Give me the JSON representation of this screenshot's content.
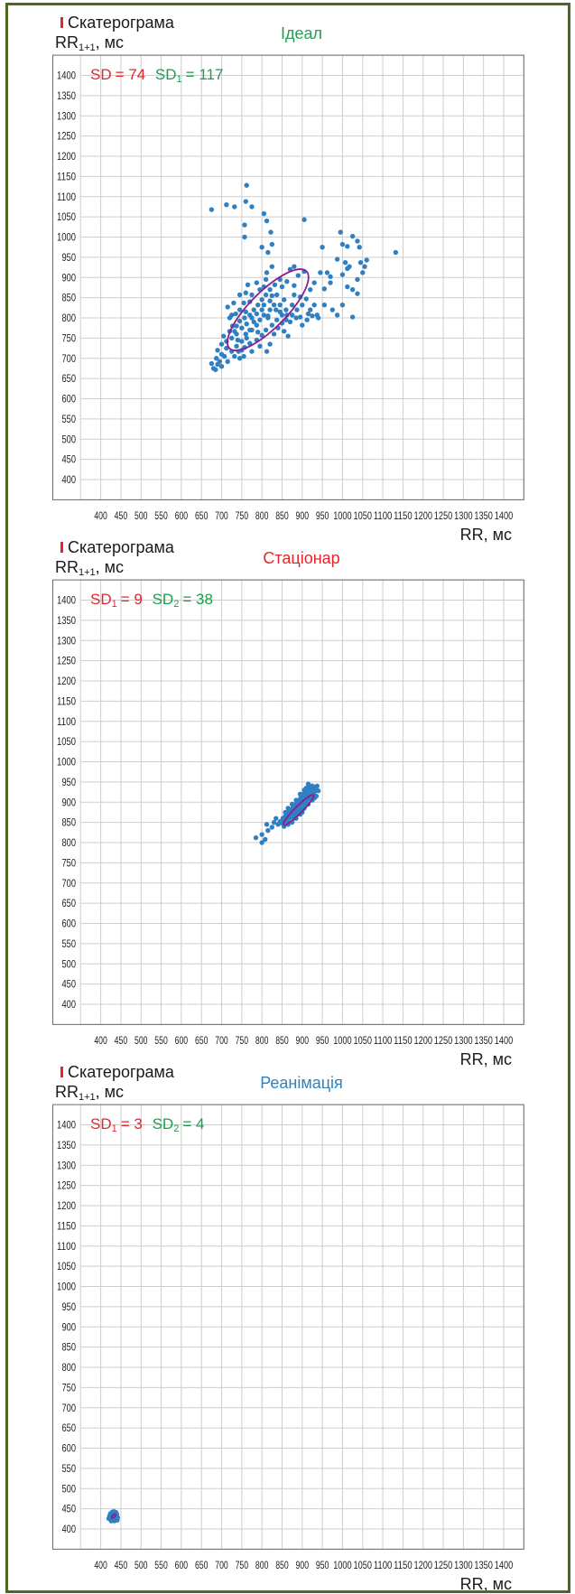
{
  "chart_data": [
    {
      "type": "scatter",
      "header": "Скатерограма",
      "title": "Ідеал",
      "title_color": "#22a14f",
      "ylabel": {
        "main": "RR",
        "sub": "1+1",
        "unit": ", мс"
      },
      "xlabel": "RR, мс",
      "xlim": [
        350,
        1450
      ],
      "ylim": [
        350,
        1450
      ],
      "grid": true,
      "xticks": [
        400,
        450,
        500,
        550,
        600,
        650,
        700,
        750,
        800,
        850,
        900,
        950,
        1000,
        1050,
        1100,
        1150,
        1200,
        1250,
        1300,
        1350,
        1400
      ],
      "yticks": [
        400,
        450,
        500,
        550,
        600,
        650,
        700,
        750,
        800,
        850,
        900,
        950,
        1000,
        1050,
        1100,
        1150,
        1200,
        1250,
        1300,
        1350,
        1400
      ],
      "annotations": [
        {
          "label": "SD",
          "value": "= 74",
          "color": "#e3262c"
        },
        {
          "label": "SD",
          "sub": "1",
          "value": "= 117",
          "color": "#1f9c4c"
        }
      ],
      "point_color": "#2f80c3",
      "points": [
        [
          675,
          1068
        ],
        [
          712,
          1080
        ],
        [
          732,
          1075
        ],
        [
          762,
          1128
        ],
        [
          760,
          1088
        ],
        [
          775,
          1075
        ],
        [
          805,
          1058
        ],
        [
          812,
          1040
        ],
        [
          757,
          1030
        ],
        [
          757,
          1000
        ],
        [
          822,
          1012
        ],
        [
          825,
          982
        ],
        [
          800,
          975
        ],
        [
          815,
          962
        ],
        [
          905,
          1043
        ],
        [
          995,
          1012
        ],
        [
          1025,
          1002
        ],
        [
          1037,
          990
        ],
        [
          1012,
          977
        ],
        [
          1000,
          982
        ],
        [
          950,
          975
        ],
        [
          987,
          945
        ],
        [
          1007,
          937
        ],
        [
          1017,
          927
        ],
        [
          1000,
          907
        ],
        [
          1012,
          922
        ],
        [
          1042,
          975
        ],
        [
          1045,
          937
        ],
        [
          1055,
          927
        ],
        [
          1050,
          912
        ],
        [
          1060,
          943
        ],
        [
          1132,
          962
        ],
        [
          1037,
          895
        ],
        [
          1025,
          870
        ],
        [
          1037,
          860
        ],
        [
          1012,
          877
        ],
        [
          1000,
          832
        ],
        [
          987,
          807
        ],
        [
          1025,
          802
        ],
        [
          962,
          912
        ],
        [
          970,
          902
        ],
        [
          970,
          887
        ],
        [
          945,
          912
        ],
        [
          955,
          872
        ],
        [
          930,
          832
        ],
        [
          920,
          820
        ],
        [
          937,
          807
        ],
        [
          912,
          795
        ],
        [
          940,
          800
        ],
        [
          900,
          782
        ],
        [
          895,
          802
        ],
        [
          875,
          807
        ],
        [
          862,
          807
        ],
        [
          850,
          787
        ],
        [
          880,
          857
        ],
        [
          895,
          852
        ],
        [
          855,
          845
        ],
        [
          845,
          832
        ],
        [
          830,
          832
        ],
        [
          820,
          820
        ],
        [
          805,
          807
        ],
        [
          795,
          795
        ],
        [
          787,
          782
        ],
        [
          775,
          770
        ],
        [
          762,
          750
        ],
        [
          750,
          742
        ],
        [
          737,
          730
        ],
        [
          725,
          717
        ],
        [
          712,
          725
        ],
        [
          700,
          710
        ],
        [
          687,
          700
        ],
        [
          675,
          687
        ],
        [
          680,
          675
        ],
        [
          695,
          692
        ],
        [
          712,
          742
        ],
        [
          720,
          767
        ],
        [
          737,
          780
        ],
        [
          750,
          775
        ],
        [
          757,
          800
        ],
        [
          770,
          807
        ],
        [
          780,
          820
        ],
        [
          790,
          832
        ],
        [
          800,
          845
        ],
        [
          810,
          857
        ],
        [
          820,
          870
        ],
        [
          832,
          882
        ],
        [
          845,
          895
        ],
        [
          870,
          920
        ],
        [
          880,
          927
        ],
        [
          825,
          927
        ],
        [
          810,
          895
        ],
        [
          787,
          887
        ],
        [
          765,
          882
        ],
        [
          745,
          857
        ],
        [
          730,
          837
        ],
        [
          715,
          827
        ],
        [
          725,
          807
        ],
        [
          745,
          820
        ],
        [
          755,
          837
        ],
        [
          775,
          857
        ],
        [
          795,
          870
        ],
        [
          805,
          877
        ],
        [
          837,
          857
        ],
        [
          850,
          877
        ],
        [
          862,
          890
        ],
        [
          755,
          705
        ],
        [
          775,
          717
        ],
        [
          795,
          730
        ],
        [
          812,
          717
        ],
        [
          820,
          735
        ],
        [
          830,
          760
        ],
        [
          840,
          775
        ],
        [
          855,
          767
        ],
        [
          865,
          755
        ],
        [
          837,
          795
        ],
        [
          825,
          782
        ],
        [
          810,
          770
        ],
        [
          800,
          757
        ],
        [
          787,
          745
        ],
        [
          770,
          737
        ],
        [
          757,
          727
        ],
        [
          742,
          717
        ],
        [
          732,
          705
        ],
        [
          715,
          692
        ],
        [
          700,
          680
        ],
        [
          685,
          672
        ],
        [
          690,
          685
        ],
        [
          707,
          705
        ],
        [
          725,
          750
        ],
        [
          732,
          767
        ],
        [
          745,
          792
        ],
        [
          762,
          785
        ],
        [
          775,
          800
        ],
        [
          787,
          810
        ],
        [
          805,
          832
        ],
        [
          820,
          842
        ],
        [
          835,
          820
        ],
        [
          850,
          807
        ],
        [
          875,
          832
        ],
        [
          887,
          820
        ],
        [
          900,
          832
        ],
        [
          910,
          847
        ],
        [
          920,
          870
        ],
        [
          930,
          887
        ],
        [
          955,
          832
        ],
        [
          975,
          820
        ],
        [
          812,
          912
        ],
        [
          727,
          780
        ],
        [
          737,
          760
        ],
        [
          760,
          760
        ],
        [
          790,
          765
        ],
        [
          815,
          800
        ],
        [
          860,
          820
        ],
        [
          845,
          815
        ],
        [
          760,
          815
        ],
        [
          700,
          735
        ],
        [
          690,
          720
        ],
        [
          705,
          755
        ],
        [
          720,
          800
        ],
        [
          735,
          810
        ],
        [
          770,
          840
        ],
        [
          760,
          862
        ],
        [
          825,
          855
        ],
        [
          880,
          880
        ],
        [
          890,
          905
        ],
        [
          905,
          915
        ],
        [
          815,
          805
        ],
        [
          800,
          820
        ],
        [
          780,
          790
        ],
        [
          770,
          770
        ],
        [
          740,
          745
        ],
        [
          750,
          720
        ],
        [
          745,
          700
        ],
        [
          870,
          790
        ],
        [
          860,
          795
        ],
        [
          885,
          800
        ],
        [
          915,
          810
        ],
        [
          925,
          805
        ]
      ],
      "ellipse": {
        "cx": 815,
        "cy": 820,
        "a": 135,
        "b": 45,
        "angle": 45,
        "color": "#8b1d8d"
      }
    },
    {
      "type": "scatter",
      "header": "Скатерограма",
      "title": "Стаціонар",
      "title_color": "#e3262c",
      "ylabel": {
        "main": "RR",
        "sub": "1+1",
        "unit": ", мс"
      },
      "xlabel": "RR, мс",
      "xlim": [
        350,
        1450
      ],
      "ylim": [
        350,
        1450
      ],
      "grid": true,
      "xticks": [
        400,
        450,
        500,
        550,
        600,
        650,
        700,
        750,
        800,
        850,
        900,
        950,
        1000,
        1050,
        1100,
        1150,
        1200,
        1250,
        1300,
        1350,
        1400
      ],
      "yticks": [
        400,
        450,
        500,
        550,
        600,
        650,
        700,
        750,
        800,
        850,
        900,
        950,
        1000,
        1050,
        1100,
        1150,
        1200,
        1250,
        1300,
        1350,
        1400
      ],
      "annotations": [
        {
          "label": "SD",
          "sub": "1",
          "value": "= 9",
          "color": "#e3262c"
        },
        {
          "label": "SD",
          "sub": "2",
          "value": "= 38",
          "color": "#1f9c4c"
        }
      ],
      "point_color": "#2f80c3",
      "points": [
        [
          785,
          812
        ],
        [
          800,
          800
        ],
        [
          808,
          808
        ],
        [
          800,
          820
        ],
        [
          815,
          830
        ],
        [
          812,
          845
        ],
        [
          825,
          838
        ],
        [
          830,
          850
        ],
        [
          835,
          860
        ],
        [
          840,
          845
        ],
        [
          845,
          852
        ],
        [
          850,
          848
        ],
        [
          852,
          860
        ],
        [
          855,
          852
        ],
        [
          858,
          865
        ],
        [
          860,
          855
        ],
        [
          862,
          870
        ],
        [
          865,
          860
        ],
        [
          867,
          875
        ],
        [
          868,
          850
        ],
        [
          870,
          862
        ],
        [
          872,
          878
        ],
        [
          874,
          868
        ],
        [
          876,
          885
        ],
        [
          878,
          872
        ],
        [
          880,
          888
        ],
        [
          880,
          860
        ],
        [
          882,
          878
        ],
        [
          884,
          895
        ],
        [
          885,
          870
        ],
        [
          886,
          883
        ],
        [
          888,
          900
        ],
        [
          889,
          876
        ],
        [
          890,
          890
        ],
        [
          892,
          905
        ],
        [
          893,
          882
        ],
        [
          895,
          895
        ],
        [
          896,
          910
        ],
        [
          897,
          885
        ],
        [
          898,
          900
        ],
        [
          900,
          915
        ],
        [
          900,
          875
        ],
        [
          902,
          905
        ],
        [
          903,
          920
        ],
        [
          905,
          895
        ],
        [
          906,
          912
        ],
        [
          907,
          928
        ],
        [
          908,
          900
        ],
        [
          910,
          918
        ],
        [
          910,
          935
        ],
        [
          912,
          905
        ],
        [
          913,
          925
        ],
        [
          915,
          915
        ],
        [
          916,
          935
        ],
        [
          918,
          908
        ],
        [
          918,
          928
        ],
        [
          920,
          920
        ],
        [
          921,
          940
        ],
        [
          922,
          912
        ],
        [
          925,
          930
        ],
        [
          926,
          918
        ],
        [
          928,
          938
        ],
        [
          930,
          925
        ],
        [
          932,
          935
        ],
        [
          935,
          930
        ],
        [
          937,
          940
        ],
        [
          930,
          910
        ],
        [
          925,
          940
        ],
        [
          915,
          945
        ],
        [
          905,
          930
        ],
        [
          895,
          920
        ],
        [
          885,
          905
        ],
        [
          875,
          895
        ],
        [
          865,
          885
        ],
        [
          858,
          875
        ],
        [
          855,
          840
        ],
        [
          865,
          845
        ],
        [
          875,
          850
        ],
        [
          885,
          860
        ],
        [
          895,
          870
        ],
        [
          905,
          885
        ],
        [
          915,
          895
        ],
        [
          925,
          905
        ],
        [
          935,
          915
        ],
        [
          940,
          928
        ]
      ],
      "ellipse": {
        "cx": 891,
        "cy": 881,
        "a": 52,
        "b": 9,
        "angle": 45,
        "color": "#8b1d8d"
      }
    },
    {
      "type": "scatter",
      "header": "Скатерограма",
      "title": "Реанімація",
      "title_color": "#2a83c6",
      "ylabel": {
        "main": "RR",
        "sub": "1+1",
        "unit": ", мс"
      },
      "xlabel": "RR, мс",
      "xlim": [
        350,
        1450
      ],
      "ylim": [
        350,
        1450
      ],
      "grid": true,
      "xticks": [
        400,
        450,
        500,
        550,
        600,
        650,
        700,
        750,
        800,
        850,
        900,
        950,
        1000,
        1050,
        1100,
        1150,
        1200,
        1250,
        1300,
        1350,
        1400
      ],
      "yticks": [
        400,
        450,
        500,
        550,
        600,
        650,
        700,
        750,
        800,
        850,
        900,
        950,
        1000,
        1050,
        1100,
        1150,
        1200,
        1250,
        1300,
        1350,
        1400
      ],
      "annotations": [
        {
          "label": "SD",
          "sub": "1",
          "value": "= 3",
          "color": "#e3262c"
        },
        {
          "label": "SD",
          "sub": "2",
          "value": "= 4",
          "color": "#1f9c4c"
        }
      ],
      "point_color": "#2f80c3",
      "points": [
        [
          425,
          430
        ],
        [
          428,
          425
        ],
        [
          430,
          435
        ],
        [
          432,
          428
        ],
        [
          435,
          433
        ],
        [
          438,
          430
        ],
        [
          433,
          438
        ],
        [
          427,
          437
        ],
        [
          422,
          432
        ],
        [
          436,
          424
        ],
        [
          440,
          436
        ],
        [
          429,
          442
        ],
        [
          434,
          420
        ],
        [
          420,
          426
        ],
        [
          442,
          428
        ],
        [
          426,
          420
        ],
        [
          438,
          441
        ],
        [
          431,
          432
        ],
        [
          424,
          438
        ],
        [
          437,
          436
        ],
        [
          430,
          427
        ],
        [
          433,
          443
        ],
        [
          441,
          422
        ]
      ],
      "ellipse": {
        "cx": 432,
        "cy": 432,
        "a": 6,
        "b": 3,
        "angle": 45,
        "color": "#8b1d8d"
      }
    }
  ]
}
